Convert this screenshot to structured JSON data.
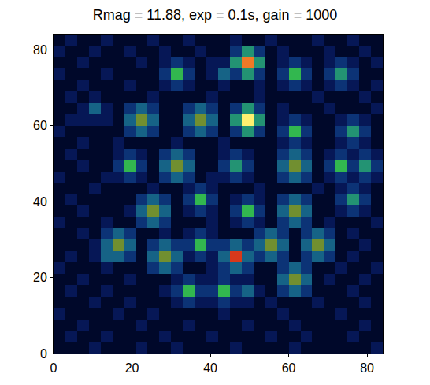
{
  "chart_data": {
    "type": "heatmap",
    "title": "Rmag = 11.88, exp = 0.1s, gain = 1000",
    "x": [
      1.5,
      4.5,
      7.5,
      10.5,
      13.5,
      16.5,
      19.5,
      22.5,
      25.5,
      28.5,
      31.5,
      34.5,
      37.5,
      40.5,
      43.5,
      46.5,
      49.5,
      52.5,
      55.5,
      58.5,
      61.5,
      64.5,
      67.5,
      70.5,
      73.5,
      76.5,
      79.5,
      82.5
    ],
    "y": [
      1.5,
      4.5,
      7.5,
      10.5,
      13.5,
      16.5,
      19.5,
      22.5,
      25.5,
      28.5,
      31.5,
      34.5,
      37.5,
      40.5,
      43.5,
      46.5,
      49.5,
      52.5,
      55.5,
      58.5,
      61.5,
      64.5,
      67.5,
      70.5,
      73.5,
      76.5,
      79.5,
      82.5
    ],
    "z": [
      [
        0,
        0,
        0,
        1,
        0,
        0,
        0,
        1,
        0,
        0,
        1,
        0,
        0,
        0,
        0,
        1,
        0,
        0,
        0,
        0,
        1,
        0,
        0,
        0,
        0,
        0,
        0,
        1
      ],
      [
        0,
        1,
        0,
        0,
        1,
        0,
        0,
        0,
        0,
        1,
        0,
        0,
        0,
        1,
        0,
        0,
        0,
        0,
        1,
        0,
        0,
        1,
        0,
        0,
        0,
        1,
        0,
        0
      ],
      [
        0,
        0,
        1,
        0,
        0,
        0,
        0,
        1,
        0,
        0,
        0,
        1,
        0,
        0,
        0,
        0,
        1,
        0,
        0,
        0,
        1,
        0,
        0,
        0,
        0,
        0,
        1,
        0
      ],
      [
        1,
        0,
        0,
        0,
        0,
        1,
        0,
        0,
        1,
        0,
        0,
        0,
        0,
        0,
        1,
        0,
        0,
        0,
        0,
        1,
        0,
        0,
        0,
        0,
        1,
        0,
        0,
        0
      ],
      [
        0,
        0,
        0,
        1,
        0,
        0,
        1,
        0,
        0,
        0,
        1,
        2,
        1,
        1,
        2,
        1,
        1,
        0,
        1,
        0,
        0,
        0,
        1,
        0,
        0,
        0,
        1,
        0
      ],
      [
        0,
        1,
        0,
        0,
        1,
        0,
        0,
        0,
        0,
        1,
        2,
        5,
        2,
        2,
        5,
        2,
        3,
        1,
        0,
        2,
        3,
        2,
        0,
        0,
        0,
        1,
        0,
        0
      ],
      [
        0,
        0,
        1,
        0,
        0,
        0,
        1,
        0,
        0,
        0,
        1,
        2,
        1,
        1,
        2,
        1,
        1,
        0,
        0,
        3,
        6,
        3,
        0,
        1,
        0,
        0,
        1,
        0
      ],
      [
        1,
        0,
        0,
        0,
        1,
        0,
        0,
        0,
        2,
        3,
        2,
        0,
        0,
        1,
        2,
        3,
        2,
        0,
        0,
        2,
        3,
        2,
        0,
        0,
        1,
        0,
        0,
        1
      ],
      [
        0,
        1,
        0,
        1,
        3,
        3,
        2,
        0,
        3,
        6,
        3,
        1,
        2,
        1,
        3,
        7,
        3,
        2,
        3,
        2,
        0,
        2,
        3,
        2,
        0,
        1,
        0,
        0
      ],
      [
        0,
        0,
        0,
        1,
        3,
        6,
        3,
        0,
        2,
        3,
        2,
        2,
        5,
        2,
        2,
        3,
        2,
        3,
        6,
        3,
        0,
        3,
        6,
        3,
        0,
        0,
        1,
        0
      ],
      [
        0,
        0,
        1,
        0,
        2,
        3,
        2,
        0,
        0,
        1,
        0,
        1,
        2,
        1,
        0,
        0,
        0,
        2,
        3,
        2,
        0,
        2,
        3,
        2,
        0,
        1,
        0,
        0
      ],
      [
        1,
        0,
        0,
        0,
        1,
        0,
        0,
        2,
        3,
        2,
        0,
        0,
        0,
        1,
        0,
        1,
        2,
        1,
        0,
        2,
        3,
        2,
        0,
        1,
        0,
        0,
        0,
        1
      ],
      [
        0,
        0,
        1,
        0,
        0,
        0,
        1,
        3,
        6,
        3,
        0,
        1,
        2,
        1,
        0,
        2,
        5,
        2,
        0,
        3,
        6,
        3,
        0,
        0,
        1,
        2,
        1,
        0
      ],
      [
        0,
        1,
        0,
        0,
        0,
        0,
        0,
        2,
        3,
        2,
        0,
        2,
        5,
        2,
        0,
        1,
        2,
        1,
        0,
        2,
        3,
        2,
        0,
        0,
        2,
        4,
        2,
        0
      ],
      [
        0,
        0,
        0,
        1,
        0,
        0,
        0,
        0,
        1,
        0,
        0,
        1,
        2,
        1,
        0,
        0,
        0,
        1,
        0,
        0,
        0,
        0,
        1,
        0,
        1,
        2,
        1,
        0
      ],
      [
        1,
        0,
        0,
        0,
        1,
        1,
        2,
        1,
        0,
        2,
        3,
        2,
        0,
        1,
        1,
        2,
        1,
        0,
        0,
        2,
        3,
        2,
        0,
        1,
        2,
        1,
        2,
        1
      ],
      [
        0,
        0,
        1,
        0,
        0,
        2,
        5,
        2,
        0,
        3,
        6,
        3,
        0,
        0,
        2,
        4,
        2,
        0,
        0,
        3,
        6,
        3,
        0,
        2,
        5,
        2,
        4,
        2
      ],
      [
        0,
        1,
        0,
        0,
        0,
        1,
        2,
        1,
        0,
        2,
        3,
        2,
        0,
        0,
        1,
        2,
        1,
        0,
        0,
        2,
        3,
        2,
        0,
        1,
        2,
        1,
        2,
        1
      ],
      [
        0,
        0,
        1,
        0,
        0,
        1,
        0,
        0,
        0,
        0,
        1,
        0,
        0,
        0,
        1,
        0,
        0,
        0,
        0,
        1,
        2,
        1,
        0,
        0,
        1,
        2,
        1,
        0
      ],
      [
        1,
        0,
        0,
        0,
        0,
        0,
        2,
        3,
        2,
        0,
        0,
        2,
        3,
        2,
        0,
        2,
        4,
        2,
        0,
        2,
        5,
        2,
        0,
        0,
        2,
        4,
        2,
        0
      ],
      [
        0,
        1,
        1,
        1,
        1,
        0,
        3,
        6,
        3,
        0,
        0,
        3,
        6,
        3,
        0,
        4,
        9,
        4,
        0,
        1,
        2,
        1,
        0,
        0,
        1,
        2,
        1,
        0
      ],
      [
        0,
        0,
        1,
        3,
        1,
        0,
        2,
        3,
        2,
        0,
        0,
        2,
        3,
        2,
        0,
        2,
        4,
        2,
        0,
        1,
        0,
        0,
        0,
        1,
        0,
        0,
        0,
        1
      ],
      [
        0,
        1,
        0,
        1,
        0,
        0,
        0,
        0,
        1,
        0,
        0,
        0,
        0,
        1,
        0,
        0,
        0,
        1,
        0,
        0,
        0,
        0,
        1,
        0,
        0,
        0,
        1,
        0
      ],
      [
        0,
        0,
        1,
        0,
        0,
        0,
        1,
        0,
        0,
        1,
        2,
        1,
        0,
        0,
        1,
        0,
        0,
        1,
        0,
        1,
        2,
        1,
        0,
        1,
        2,
        1,
        0,
        1
      ],
      [
        1,
        0,
        0,
        0,
        1,
        0,
        0,
        0,
        0,
        2,
        5,
        2,
        0,
        1,
        3,
        2,
        4,
        2,
        0,
        2,
        5,
        2,
        0,
        2,
        4,
        2,
        0,
        0
      ],
      [
        0,
        0,
        1,
        0,
        0,
        0,
        0,
        1,
        0,
        1,
        2,
        1,
        0,
        1,
        1,
        4,
        8,
        4,
        0,
        1,
        2,
        1,
        0,
        1,
        2,
        1,
        0,
        1
      ],
      [
        1,
        0,
        0,
        1,
        0,
        0,
        1,
        0,
        0,
        1,
        0,
        0,
        1,
        0,
        0,
        2,
        4,
        2,
        0,
        1,
        0,
        0,
        0,
        1,
        0,
        0,
        1,
        0
      ],
      [
        0,
        1,
        0,
        0,
        1,
        0,
        0,
        0,
        1,
        0,
        0,
        1,
        0,
        0,
        0,
        1,
        0,
        0,
        1,
        0,
        0,
        0,
        1,
        0,
        0,
        1,
        0,
        0
      ]
    ],
    "xlim": [
      0,
      84
    ],
    "ylim": [
      0,
      84
    ],
    "xticks": [
      0,
      20,
      40,
      60,
      80
    ],
    "yticks": [
      0,
      20,
      40,
      60,
      80
    ],
    "grid": false
  }
}
